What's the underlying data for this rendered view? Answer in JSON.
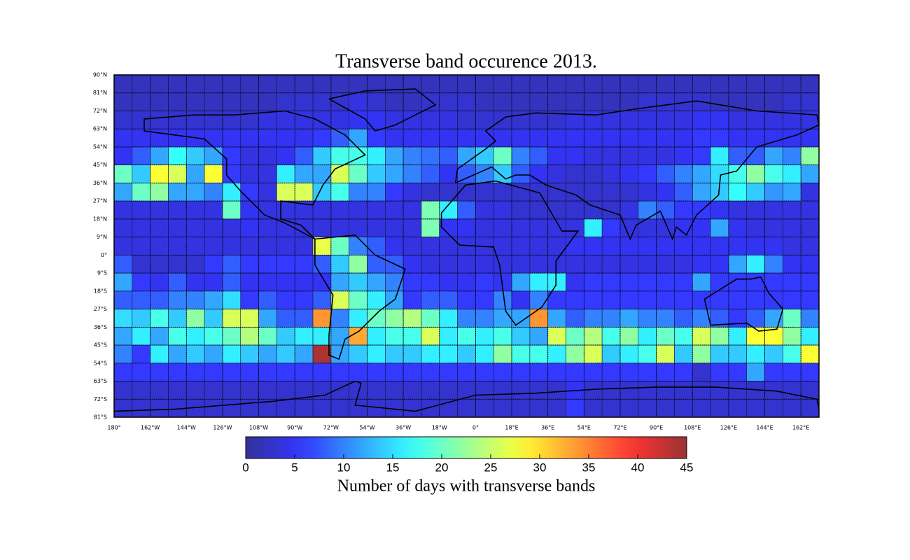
{
  "chart_data": {
    "type": "heatmap",
    "title": "Transverse band occurence 2013.",
    "colorbar_label": "Number of days with transverse bands",
    "cmap": "jet",
    "clim": [
      0,
      45
    ],
    "colorbar_ticks": [
      0,
      5,
      10,
      15,
      20,
      25,
      30,
      35,
      40,
      45
    ],
    "xlim": [
      -180,
      171
    ],
    "ylim": [
      -81,
      90
    ],
    "grid": true,
    "xticks": [
      {
        "value": -180,
        "label": "180°"
      },
      {
        "value": -162,
        "label": "162°W"
      },
      {
        "value": -144,
        "label": "144°W"
      },
      {
        "value": -126,
        "label": "126°W"
      },
      {
        "value": -108,
        "label": "108°W"
      },
      {
        "value": -90,
        "label": "90°W"
      },
      {
        "value": -72,
        "label": "72°W"
      },
      {
        "value": -54,
        "label": "54°W"
      },
      {
        "value": -36,
        "label": "36°W"
      },
      {
        "value": -18,
        "label": "18°W"
      },
      {
        "value": 0,
        "label": "0°"
      },
      {
        "value": 18,
        "label": "18°E"
      },
      {
        "value": 36,
        "label": "36°E"
      },
      {
        "value": 54,
        "label": "54°E"
      },
      {
        "value": 72,
        "label": "72°E"
      },
      {
        "value": 90,
        "label": "90°E"
      },
      {
        "value": 108,
        "label": "108°E"
      },
      {
        "value": 126,
        "label": "126°E"
      },
      {
        "value": 144,
        "label": "144°E"
      },
      {
        "value": 162,
        "label": "162°E"
      }
    ],
    "yticks": [
      {
        "value": 90,
        "label": "90°N"
      },
      {
        "value": 81,
        "label": "81°N"
      },
      {
        "value": 72,
        "label": "72°N"
      },
      {
        "value": 63,
        "label": "63°N"
      },
      {
        "value": 54,
        "label": "54°N"
      },
      {
        "value": 45,
        "label": "45°N"
      },
      {
        "value": 36,
        "label": "36°N"
      },
      {
        "value": 27,
        "label": "27°N"
      },
      {
        "value": 18,
        "label": "18°N"
      },
      {
        "value": 9,
        "label": "9°N"
      },
      {
        "value": 0,
        "label": "0°"
      },
      {
        "value": -9,
        "label": "9°S"
      },
      {
        "value": -18,
        "label": "18°S"
      },
      {
        "value": -27,
        "label": "27°S"
      },
      {
        "value": -36,
        "label": "36°S"
      },
      {
        "value": -45,
        "label": "45°S"
      },
      {
        "value": -54,
        "label": "54°S"
      },
      {
        "value": -63,
        "label": "63°S"
      },
      {
        "value": -72,
        "label": "72°S"
      },
      {
        "value": -81,
        "label": "81°S"
      }
    ],
    "values": [
      [
        2,
        2,
        2,
        2,
        2,
        2,
        2,
        2,
        2,
        2,
        2,
        2,
        2,
        2,
        2,
        2,
        2,
        2,
        2,
        2,
        2,
        2,
        2,
        2,
        2,
        2,
        2,
        2,
        2,
        2,
        2,
        2,
        2,
        2,
        2,
        2,
        2,
        2,
        2
      ],
      [
        2,
        2,
        2,
        2,
        2,
        2,
        2,
        2,
        2,
        3,
        3,
        3,
        3,
        4,
        3,
        2,
        2,
        3,
        3,
        3,
        2,
        2,
        2,
        2,
        2,
        2,
        2,
        2,
        2,
        3,
        3,
        3,
        3,
        2,
        2,
        2,
        2,
        3,
        3
      ],
      [
        3,
        3,
        3,
        3,
        3,
        3,
        3,
        3,
        4,
        4,
        4,
        4,
        4,
        5,
        5,
        4,
        4,
        4,
        4,
        3,
        3,
        3,
        3,
        3,
        3,
        4,
        4,
        4,
        4,
        4,
        4,
        4,
        5,
        5,
        4,
        4,
        4,
        4,
        4
      ],
      [
        5,
        5,
        5,
        5,
        5,
        5,
        5,
        5,
        5,
        5,
        5,
        6,
        8,
        12,
        6,
        5,
        5,
        5,
        5,
        5,
        5,
        5,
        5,
        5,
        5,
        5,
        5,
        5,
        5,
        5,
        5,
        5,
        6,
        6,
        5,
        5,
        5,
        5,
        5
      ],
      [
        5,
        8,
        12,
        17,
        14,
        12,
        6,
        4,
        4,
        5,
        8,
        14,
        18,
        18,
        16,
        12,
        10,
        9,
        8,
        12,
        14,
        20,
        10,
        8,
        5,
        5,
        4,
        4,
        4,
        4,
        4,
        5,
        6,
        16,
        8,
        8,
        12,
        10,
        22
      ],
      [
        20,
        14,
        28,
        26,
        12,
        28,
        6,
        4,
        4,
        16,
        12,
        12,
        26,
        20,
        14,
        12,
        10,
        8,
        5,
        8,
        10,
        14,
        8,
        5,
        4,
        3,
        3,
        4,
        5,
        6,
        8,
        10,
        12,
        15,
        18,
        22,
        18,
        16,
        12
      ],
      [
        12,
        20,
        22,
        12,
        12,
        10,
        16,
        6,
        4,
        26,
        26,
        14,
        18,
        10,
        10,
        6,
        4,
        3,
        3,
        3,
        3,
        3,
        3,
        3,
        3,
        3,
        3,
        3,
        3,
        4,
        5,
        8,
        12,
        14,
        17,
        14,
        11,
        12,
        4
      ],
      [
        4,
        4,
        4,
        4,
        4,
        4,
        20,
        5,
        4,
        4,
        4,
        4,
        4,
        4,
        4,
        4,
        4,
        21,
        16,
        8,
        4,
        4,
        3,
        3,
        3,
        3,
        3,
        3,
        4,
        10,
        8,
        6,
        6,
        5,
        4,
        4,
        4,
        4,
        4
      ],
      [
        4,
        4,
        4,
        4,
        4,
        4,
        4,
        5,
        4,
        4,
        4,
        4,
        4,
        4,
        4,
        4,
        4,
        21,
        5,
        5,
        4,
        4,
        4,
        4,
        4,
        4,
        16,
        6,
        4,
        4,
        4,
        5,
        5,
        12,
        5,
        4,
        4,
        4,
        4
      ],
      [
        4,
        4,
        4,
        4,
        4,
        4,
        4,
        4,
        4,
        4,
        4,
        27,
        20,
        10,
        8,
        5,
        4,
        4,
        4,
        4,
        4,
        4,
        4,
        4,
        4,
        5,
        5,
        5,
        5,
        5,
        5,
        5,
        5,
        5,
        5,
        5,
        5,
        4,
        4
      ],
      [
        8,
        3,
        3,
        3,
        3,
        6,
        8,
        6,
        6,
        6,
        6,
        8,
        14,
        22,
        8,
        8,
        5,
        4,
        4,
        4,
        4,
        4,
        4,
        4,
        4,
        4,
        4,
        4,
        4,
        4,
        4,
        4,
        5,
        5,
        12,
        16,
        10,
        5,
        5
      ],
      [
        12,
        6,
        5,
        8,
        5,
        5,
        8,
        5,
        5,
        5,
        5,
        5,
        12,
        14,
        12,
        10,
        6,
        6,
        5,
        5,
        6,
        5,
        12,
        16,
        16,
        5,
        6,
        6,
        6,
        6,
        6,
        6,
        12,
        6,
        6,
        6,
        6,
        6,
        6
      ],
      [
        8,
        8,
        8,
        10,
        10,
        12,
        15,
        6,
        8,
        6,
        6,
        8,
        26,
        20,
        16,
        12,
        6,
        8,
        8,
        6,
        6,
        10,
        5,
        10,
        6,
        6,
        6,
        6,
        6,
        6,
        6,
        6,
        6,
        6,
        6,
        6,
        6,
        6,
        6
      ],
      [
        15,
        14,
        18,
        14,
        22,
        14,
        26,
        26,
        12,
        8,
        8,
        34,
        10,
        16,
        20,
        22,
        24,
        20,
        16,
        10,
        10,
        12,
        12,
        34,
        12,
        8,
        10,
        10,
        12,
        10,
        10,
        8,
        10,
        8,
        6,
        8,
        12,
        20,
        10
      ],
      [
        12,
        16,
        12,
        18,
        16,
        18,
        20,
        24,
        20,
        14,
        16,
        16,
        12,
        33,
        16,
        18,
        18,
        26,
        16,
        18,
        16,
        18,
        14,
        12,
        26,
        20,
        24,
        18,
        22,
        16,
        20,
        18,
        26,
        22,
        16,
        28,
        28,
        22,
        16
      ],
      [
        10,
        6,
        16,
        12,
        14,
        12,
        16,
        14,
        12,
        14,
        12,
        44,
        12,
        14,
        16,
        14,
        14,
        16,
        16,
        14,
        16,
        22,
        18,
        18,
        16,
        22,
        26,
        14,
        16,
        18,
        26,
        14,
        22,
        14,
        14,
        16,
        14,
        18,
        28
      ],
      [
        6,
        6,
        6,
        6,
        6,
        6,
        6,
        6,
        6,
        6,
        6,
        6,
        6,
        6,
        6,
        6,
        6,
        6,
        6,
        6,
        6,
        6,
        6,
        6,
        6,
        6,
        6,
        6,
        6,
        6,
        6,
        6,
        3,
        6,
        6,
        12,
        6,
        6,
        6
      ],
      [
        3,
        3,
        3,
        3,
        3,
        3,
        3,
        3,
        3,
        3,
        3,
        3,
        3,
        3,
        3,
        3,
        3,
        3,
        3,
        3,
        3,
        3,
        3,
        3,
        3,
        5,
        3,
        3,
        3,
        3,
        3,
        3,
        3,
        3,
        3,
        3,
        3,
        3,
        3
      ],
      [
        3,
        3,
        3,
        3,
        3,
        3,
        3,
        3,
        3,
        3,
        3,
        3,
        3,
        3,
        3,
        3,
        3,
        3,
        3,
        3,
        3,
        3,
        3,
        3,
        3,
        6,
        3,
        3,
        3,
        3,
        3,
        3,
        3,
        3,
        3,
        3,
        3,
        3,
        3
      ]
    ]
  }
}
